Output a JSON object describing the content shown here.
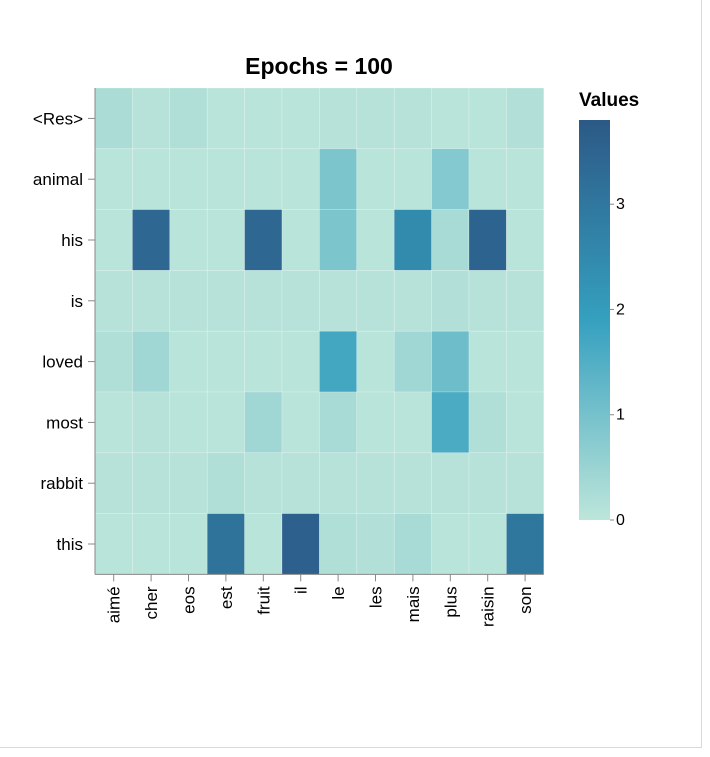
{
  "chart_data": {
    "type": "heatmap",
    "title": "Epochs = 100",
    "xlabel": "",
    "ylabel": "",
    "x_categories": [
      "aimé",
      "cher",
      "eos",
      "est",
      "fruit",
      "il",
      "le",
      "les",
      "mais",
      "plus",
      "raisin",
      "son"
    ],
    "y_categories": [
      "<Res>",
      "animal",
      "his",
      "is",
      "loved",
      "most",
      "rabbit",
      "this"
    ],
    "values": [
      [
        0.25,
        0.1,
        0.2,
        0.05,
        0.05,
        0.05,
        0.1,
        0.1,
        0.1,
        0.05,
        0.05,
        0.15
      ],
      [
        0.05,
        0.05,
        0.05,
        0.05,
        0.05,
        0.05,
        0.9,
        0.05,
        0.05,
        0.8,
        0.05,
        0.05
      ],
      [
        0.05,
        3.4,
        0.05,
        0.05,
        3.4,
        0.05,
        0.9,
        0.05,
        2.5,
        0.3,
        3.5,
        0.05
      ],
      [
        0.1,
        0.1,
        0.1,
        0.1,
        0.1,
        0.1,
        0.1,
        0.1,
        0.1,
        0.15,
        0.1,
        0.1
      ],
      [
        0.2,
        0.4,
        0.05,
        0.05,
        0.05,
        0.05,
        1.7,
        0.05,
        0.4,
        1.1,
        0.05,
        0.05
      ],
      [
        0.05,
        0.1,
        0.05,
        0.05,
        0.4,
        0.05,
        0.3,
        0.05,
        0.05,
        1.6,
        0.2,
        0.05
      ],
      [
        0.1,
        0.1,
        0.1,
        0.2,
        0.1,
        0.1,
        0.1,
        0.1,
        0.1,
        0.1,
        0.1,
        0.1
      ],
      [
        0.05,
        0.05,
        0.05,
        3.1,
        0.05,
        3.6,
        0.2,
        0.15,
        0.3,
        0.05,
        0.05,
        3.0
      ]
    ],
    "legend": {
      "title": "Values",
      "ticks": [
        "0",
        "1",
        "2",
        "3"
      ],
      "domain": [
        0,
        3.8
      ],
      "position": "right"
    },
    "colors": {
      "low": "#bde6da",
      "mid": "#35a0bf",
      "high": "#2c5986"
    },
    "grid": false
  }
}
